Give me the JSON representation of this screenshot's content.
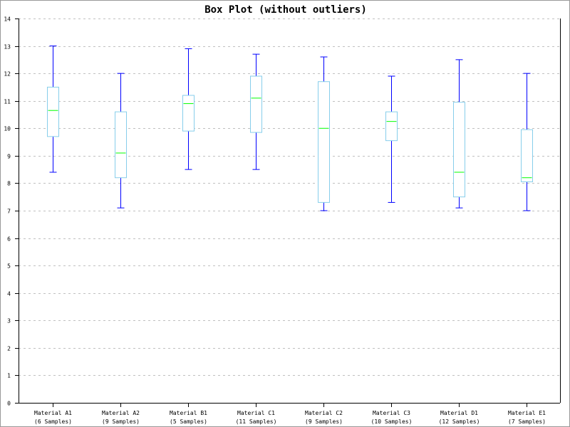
{
  "chart_data": {
    "type": "boxplot",
    "title": "Box Plot (without outliers)",
    "xlabel": "",
    "ylabel": "",
    "ylim": [
      0,
      14
    ],
    "yticks": [
      0,
      1,
      2,
      3,
      4,
      5,
      6,
      7,
      8,
      9,
      10,
      11,
      12,
      13,
      14
    ],
    "grid": true,
    "categories": [
      {
        "label": "Material A1",
        "samples": "(6 Samples)",
        "min": 8.4,
        "q1": 9.7,
        "median": 10.65,
        "q3": 11.5,
        "max": 13.0
      },
      {
        "label": "Material A2",
        "samples": "(9 Samples)",
        "min": 7.1,
        "q1": 8.2,
        "median": 9.1,
        "q3": 10.6,
        "max": 12.0
      },
      {
        "label": "Material B1",
        "samples": "(5 Samples)",
        "min": 8.5,
        "q1": 9.9,
        "median": 10.9,
        "q3": 11.2,
        "max": 12.9
      },
      {
        "label": "Material C1",
        "samples": "(11 Samples)",
        "min": 8.5,
        "q1": 9.85,
        "median": 11.1,
        "q3": 11.9,
        "max": 12.7
      },
      {
        "label": "Material C2",
        "samples": "(9 Samples)",
        "min": 7.0,
        "q1": 7.3,
        "median": 10.0,
        "q3": 11.7,
        "max": 12.6
      },
      {
        "label": "Material C3",
        "samples": "(10 Samples)",
        "min": 7.3,
        "q1": 9.55,
        "median": 10.25,
        "q3": 10.6,
        "max": 11.9
      },
      {
        "label": "Material D1",
        "samples": "(12 Samples)",
        "min": 7.1,
        "q1": 7.5,
        "median": 8.4,
        "q3": 10.95,
        "max": 12.5
      },
      {
        "label": "Material E1",
        "samples": "(7 Samples)",
        "min": 7.0,
        "q1": 8.05,
        "median": 8.2,
        "q3": 9.95,
        "max": 12.0
      }
    ],
    "colors": {
      "whisker": "#0000ff",
      "box": "#87ceeb",
      "median": "#00ff00",
      "grid": "#c0c0c0",
      "axis": "#000000"
    }
  }
}
